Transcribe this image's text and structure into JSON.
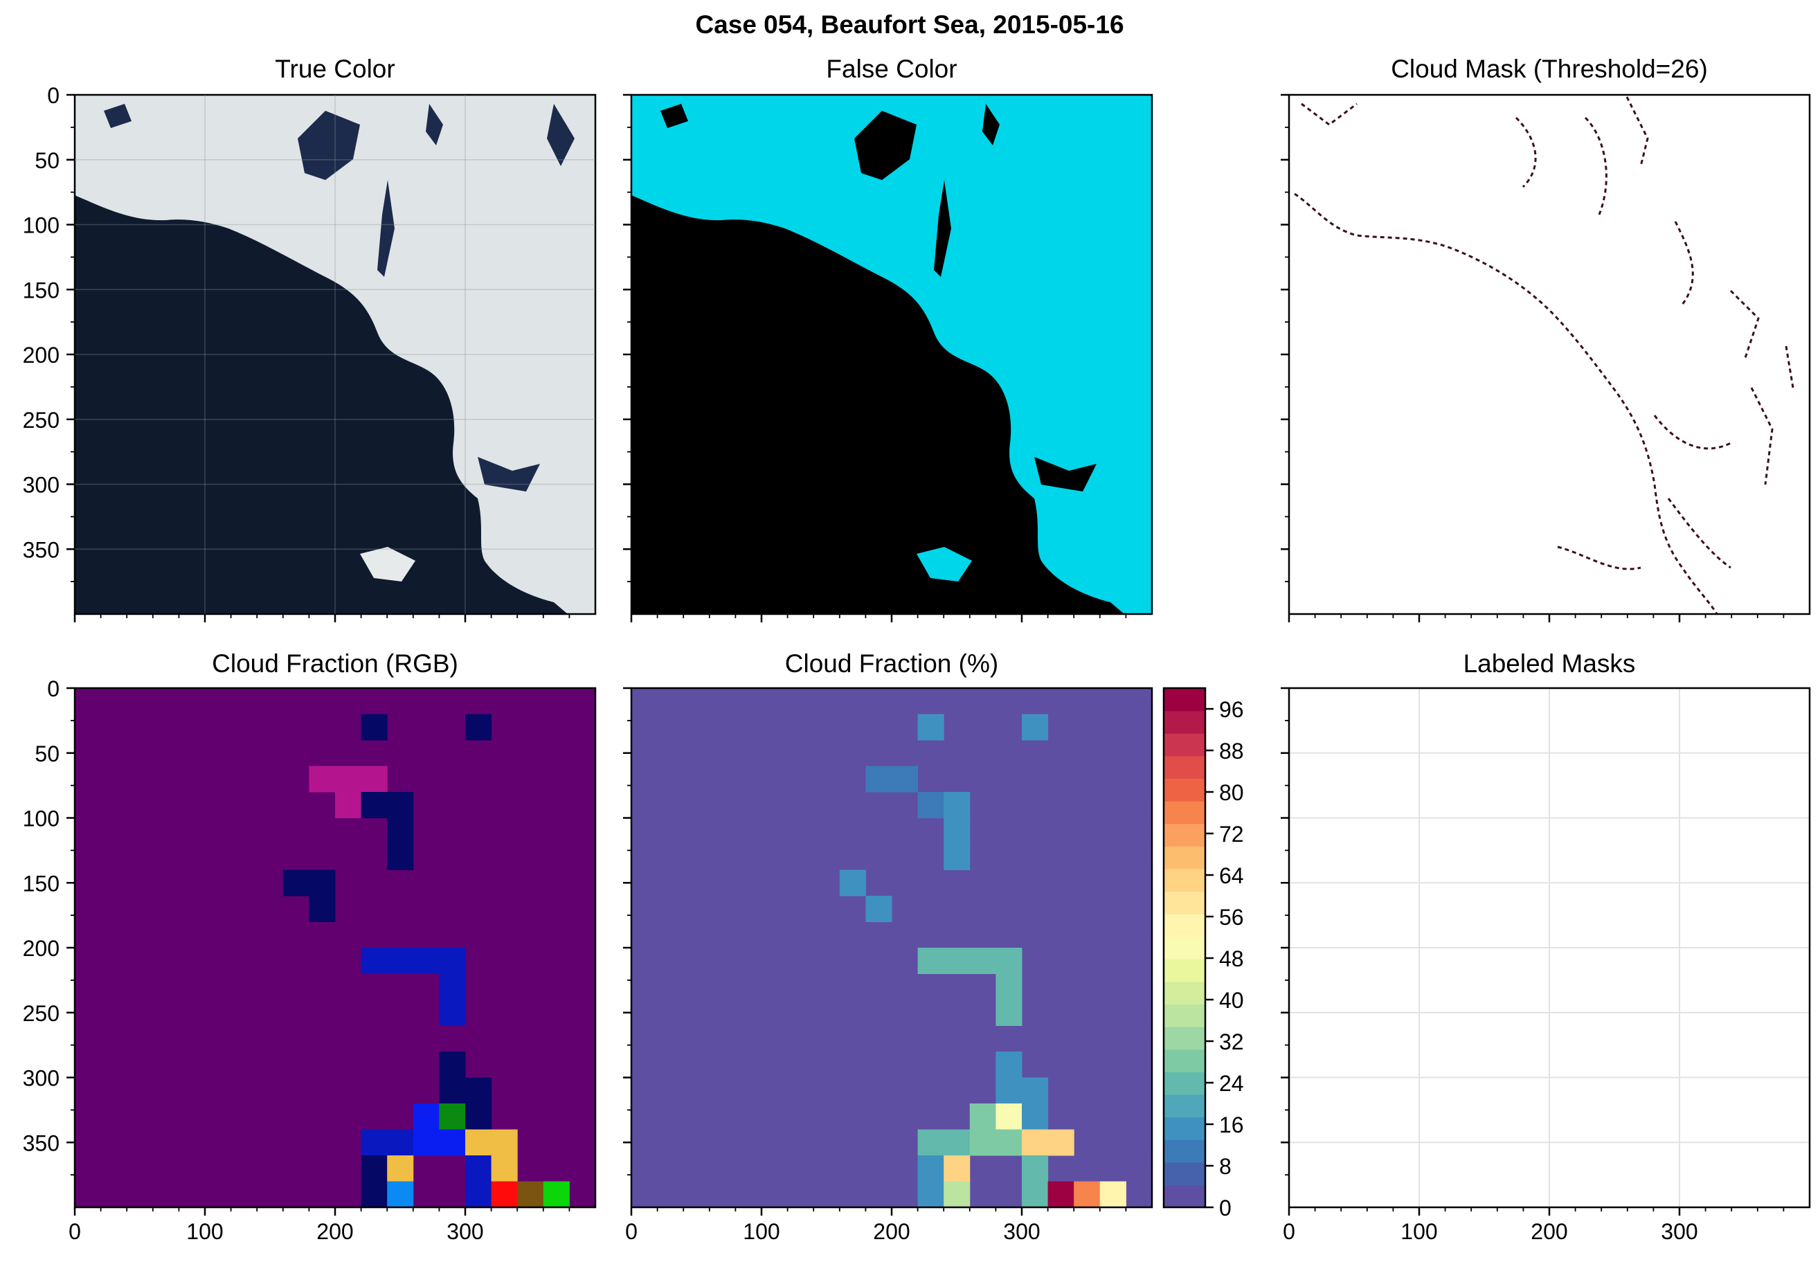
{
  "title": "Case 054, Beaufort Sea, 2015-05-16",
  "panels": {
    "true_color": {
      "title": "True Color"
    },
    "false_color": {
      "title": "False Color"
    },
    "cloud_mask": {
      "title": "Cloud Mask (Threshold=26)"
    },
    "cf_rgb": {
      "title": "Cloud Fraction (RGB)"
    },
    "cf_pct": {
      "title": "Cloud Fraction (%)"
    },
    "labeled": {
      "title": "Labeled Masks"
    }
  },
  "axes": {
    "y_ticks": [
      0,
      50,
      100,
      150,
      200,
      250,
      300,
      350
    ],
    "x_ticks": [
      0,
      100,
      200,
      300
    ],
    "range": [
      0,
      400
    ]
  },
  "colorbar": {
    "ticks": [
      0,
      8,
      16,
      24,
      32,
      40,
      48,
      56,
      64,
      72,
      80,
      88,
      96
    ],
    "range": [
      0,
      100
    ],
    "colormap": "Spectral_r",
    "colors": [
      "#5e4fa2",
      "#4662ad",
      "#3d7ab8",
      "#3f92c0",
      "#4fa7ba",
      "#62b9ac",
      "#7ecaa4",
      "#9dd7a4",
      "#bbe4a0",
      "#d4ed9c",
      "#eaf79d",
      "#f8fbb1",
      "#fff5ae",
      "#fee59a",
      "#fed383",
      "#fdbd6f",
      "#fca05f",
      "#f7834d",
      "#ee6344",
      "#e14e4a",
      "#cc3550",
      "#b3194a",
      "#9e0142"
    ]
  },
  "chart_data": [
    {
      "type": "heatmap",
      "title": "True Color",
      "ylim": [
        400,
        0
      ],
      "note_colors": {
        "water": "#0f1a2c",
        "ice": "#dde3e5"
      }
    },
    {
      "type": "heatmap",
      "title": "False Color",
      "ylim": [
        400,
        0
      ],
      "note_colors": {
        "water": "#000000",
        "ice": "#00d7ea"
      }
    },
    {
      "type": "heatmap",
      "title": "Cloud Mask (Threshold=26)",
      "ylim": [
        400,
        0
      ],
      "note_colors": {
        "mask": "#3b0d24"
      }
    },
    {
      "type": "heatmap",
      "title": "Cloud Fraction (%)",
      "grid_size": 20,
      "cells": [
        {
          "x": 220,
          "y": 20,
          "v": 16
        },
        {
          "x": 300,
          "y": 20,
          "v": 16
        },
        {
          "x": 180,
          "y": 60,
          "v": 10
        },
        {
          "x": 200,
          "y": 60,
          "v": 10
        },
        {
          "x": 220,
          "y": 80,
          "v": 12
        },
        {
          "x": 240,
          "y": 80,
          "v": 16
        },
        {
          "x": 240,
          "y": 100,
          "v": 16
        },
        {
          "x": 240,
          "y": 120,
          "v": 16
        },
        {
          "x": 160,
          "y": 140,
          "v": 16
        },
        {
          "x": 180,
          "y": 160,
          "v": 16
        },
        {
          "x": 220,
          "y": 200,
          "v": 24
        },
        {
          "x": 240,
          "y": 200,
          "v": 24
        },
        {
          "x": 260,
          "y": 200,
          "v": 24
        },
        {
          "x": 280,
          "y": 200,
          "v": 24
        },
        {
          "x": 280,
          "y": 220,
          "v": 24
        },
        {
          "x": 280,
          "y": 240,
          "v": 24
        },
        {
          "x": 280,
          "y": 280,
          "v": 16
        },
        {
          "x": 280,
          "y": 300,
          "v": 14
        },
        {
          "x": 300,
          "y": 300,
          "v": 14
        },
        {
          "x": 260,
          "y": 320,
          "v": 30
        },
        {
          "x": 280,
          "y": 320,
          "v": 48
        },
        {
          "x": 300,
          "y": 320,
          "v": 16
        },
        {
          "x": 220,
          "y": 340,
          "v": 24
        },
        {
          "x": 240,
          "y": 340,
          "v": 24
        },
        {
          "x": 260,
          "y": 340,
          "v": 30
        },
        {
          "x": 280,
          "y": 340,
          "v": 30
        },
        {
          "x": 300,
          "y": 340,
          "v": 64
        },
        {
          "x": 320,
          "y": 340,
          "v": 64
        },
        {
          "x": 220,
          "y": 360,
          "v": 16
        },
        {
          "x": 240,
          "y": 360,
          "v": 64
        },
        {
          "x": 300,
          "y": 360,
          "v": 24
        },
        {
          "x": 220,
          "y": 380,
          "v": 16
        },
        {
          "x": 240,
          "y": 380,
          "v": 36
        },
        {
          "x": 300,
          "y": 380,
          "v": 24
        },
        {
          "x": 320,
          "y": 380,
          "v": 98
        },
        {
          "x": 340,
          "y": 380,
          "v": 78
        },
        {
          "x": 360,
          "y": 380,
          "v": 56
        }
      ]
    },
    {
      "type": "heatmap",
      "title": "Cloud Fraction (RGB)",
      "grid_size": 20,
      "background": "#620070",
      "cells": [
        {
          "x": 220,
          "y": 20,
          "c": "#050865"
        },
        {
          "x": 300,
          "y": 20,
          "c": "#050865"
        },
        {
          "x": 180,
          "y": 60,
          "c": "#b4158e"
        },
        {
          "x": 200,
          "y": 60,
          "c": "#b4158e"
        },
        {
          "x": 220,
          "y": 60,
          "c": "#b4158e"
        },
        {
          "x": 200,
          "y": 80,
          "c": "#b4158e"
        },
        {
          "x": 220,
          "y": 80,
          "c": "#050865"
        },
        {
          "x": 240,
          "y": 80,
          "c": "#050865"
        },
        {
          "x": 240,
          "y": 100,
          "c": "#050865"
        },
        {
          "x": 240,
          "y": 120,
          "c": "#050865"
        },
        {
          "x": 160,
          "y": 140,
          "c": "#050865"
        },
        {
          "x": 180,
          "y": 140,
          "c": "#050865"
        },
        {
          "x": 180,
          "y": 160,
          "c": "#050865"
        },
        {
          "x": 220,
          "y": 200,
          "c": "#0a18c0"
        },
        {
          "x": 240,
          "y": 200,
          "c": "#0a18c0"
        },
        {
          "x": 260,
          "y": 200,
          "c": "#0a18c0"
        },
        {
          "x": 280,
          "y": 200,
          "c": "#0a18c0"
        },
        {
          "x": 280,
          "y": 220,
          "c": "#0a18c0"
        },
        {
          "x": 280,
          "y": 240,
          "c": "#0a18c0"
        },
        {
          "x": 280,
          "y": 280,
          "c": "#050865"
        },
        {
          "x": 280,
          "y": 300,
          "c": "#050865"
        },
        {
          "x": 300,
          "y": 300,
          "c": "#050865"
        },
        {
          "x": 260,
          "y": 320,
          "c": "#0a1ef2"
        },
        {
          "x": 280,
          "y": 320,
          "c": "#0a8a10"
        },
        {
          "x": 300,
          "y": 320,
          "c": "#050865"
        },
        {
          "x": 220,
          "y": 340,
          "c": "#0a18c0"
        },
        {
          "x": 240,
          "y": 340,
          "c": "#0a18c0"
        },
        {
          "x": 260,
          "y": 340,
          "c": "#0a1ef2"
        },
        {
          "x": 280,
          "y": 340,
          "c": "#0a1ef2"
        },
        {
          "x": 300,
          "y": 340,
          "c": "#f0bd45"
        },
        {
          "x": 320,
          "y": 340,
          "c": "#f0bd45"
        },
        {
          "x": 220,
          "y": 360,
          "c": "#050865"
        },
        {
          "x": 240,
          "y": 360,
          "c": "#f0bd45"
        },
        {
          "x": 300,
          "y": 360,
          "c": "#0a18c0"
        },
        {
          "x": 320,
          "y": 360,
          "c": "#f0bd45"
        },
        {
          "x": 220,
          "y": 380,
          "c": "#050865"
        },
        {
          "x": 240,
          "y": 380,
          "c": "#0a8af2"
        },
        {
          "x": 300,
          "y": 380,
          "c": "#0a18c0"
        },
        {
          "x": 320,
          "y": 380,
          "c": "#ff0b0b"
        },
        {
          "x": 340,
          "y": 380,
          "c": "#7a5410"
        },
        {
          "x": 360,
          "y": 380,
          "c": "#0ad60a"
        }
      ]
    },
    {
      "type": "heatmap",
      "title": "Labeled Masks",
      "xlim": [
        0,
        400
      ],
      "ylim": [
        400,
        0
      ],
      "grid": true
    }
  ]
}
